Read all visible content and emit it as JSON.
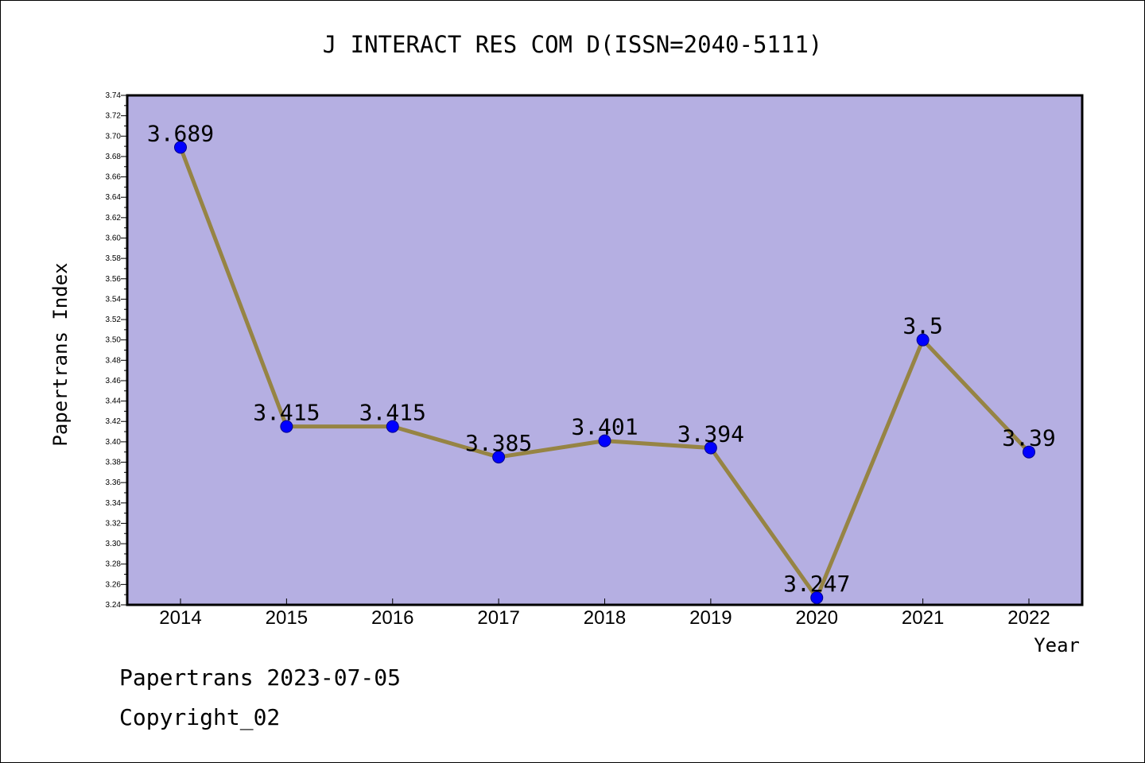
{
  "chart_data": {
    "type": "line",
    "title": "J INTERACT RES COM D(ISSN=2040-5111)",
    "xlabel": "Year",
    "ylabel": "Papertrans Index",
    "categories": [
      "2014",
      "2015",
      "2016",
      "2017",
      "2018",
      "2019",
      "2020",
      "2021",
      "2022"
    ],
    "series": [
      {
        "values": [
          3.689,
          3.415,
          3.415,
          3.385,
          3.401,
          3.394,
          3.247,
          3.5,
          3.39
        ],
        "labels": [
          "3.689",
          "3.415",
          "3.415",
          "3.385",
          "3.401",
          "3.394",
          "3.247",
          "3.5",
          "3.39"
        ]
      }
    ],
    "ylim": [
      3.24,
      3.74
    ],
    "yticks": [
      "3.24",
      "3.26",
      "3.28",
      "3.30",
      "3.32",
      "3.34",
      "3.36",
      "3.38",
      "3.40",
      "3.42",
      "3.44",
      "3.46",
      "3.48",
      "3.50",
      "3.52",
      "3.54",
      "3.56",
      "3.58",
      "3.60",
      "3.62",
      "3.64",
      "3.66",
      "3.68",
      "3.70",
      "3.72",
      "3.74"
    ],
    "grid": false,
    "legend": "none",
    "colors": {
      "plot_background": "#b5afe2",
      "line": "#968444",
      "marker": "#0000ff",
      "axis": "#000000"
    }
  },
  "footer": {
    "date_line": "Papertrans 2023-07-05",
    "copyright_line": "Copyright_02"
  }
}
